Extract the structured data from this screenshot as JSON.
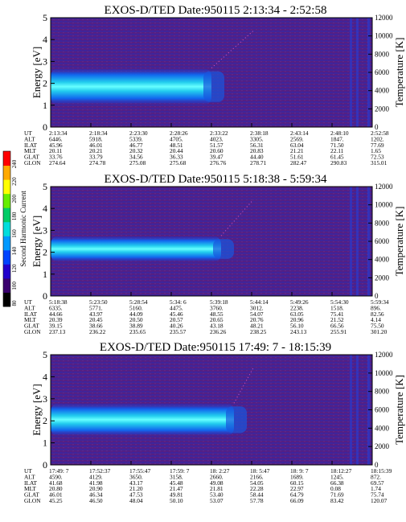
{
  "figure": {
    "colorbar": {
      "label": "Second Harmonic Current",
      "ticks": [
        "80",
        "100",
        "120",
        "140",
        "160",
        "180",
        "200",
        "220",
        "240"
      ],
      "colors": [
        "#000000",
        "#3a006e",
        "#2200cc",
        "#0044ff",
        "#0099ff",
        "#00dddd",
        "#00cc66",
        "#66ee00",
        "#ffff00",
        "#ffaa00",
        "#ff0000"
      ]
    }
  },
  "chart_data": [
    {
      "type": "heatmap",
      "title": "EXOS-D/TED   Date:950115  2:13:34 - 2:52:58",
      "ylabel": "Energy [eV]",
      "ylabel_right": "Temperature [K]",
      "yticks": [
        "0",
        "1",
        "2",
        "3",
        "4",
        "5"
      ],
      "ylim": [
        0,
        5
      ],
      "yticks_right": [
        "0",
        "2000",
        "4000",
        "6000",
        "8000",
        "10000",
        "12000"
      ],
      "ylim_right": [
        0,
        12000
      ],
      "row_labels": [
        "UT",
        "ALT",
        "ILAT",
        "MLT",
        "GLAT",
        "GLON"
      ],
      "columns": [
        [
          "2:13:34",
          "6446.",
          "45.96",
          "20.11",
          "33.76",
          "274.64"
        ],
        [
          "2:18:34",
          "5918.",
          "46.01",
          "20.21",
          "33.79",
          "274.78"
        ],
        [
          "2:23:30",
          "5339.",
          "46.77",
          "20.32",
          "34.56",
          "275.08"
        ],
        [
          "2:28:26",
          "4705.",
          "48.51",
          "20.44",
          "36.33",
          "275.68"
        ],
        [
          "2:33:22",
          "4023.",
          "51.57",
          "20.60",
          "39.47",
          "276.76"
        ],
        [
          "2:38:18",
          "3305.",
          "56.31",
          "20.83",
          "44.40",
          "278.71"
        ],
        [
          "2:43:14",
          "2569.",
          "63.04",
          "21.21",
          "51.61",
          "282.47"
        ],
        [
          "2:48:10",
          "1847.",
          "71.50",
          "22.11",
          "61.45",
          "290.83"
        ],
        [
          "2:52:58",
          "1202.",
          "77.69",
          "1.65",
          "72.53",
          "315.01"
        ]
      ],
      "band": {
        "center_ev": 1.85,
        "halfwidth_ev": 0.85,
        "end_fraction": 0.5
      }
    },
    {
      "type": "heatmap",
      "title": "EXOS-D/TED   Date:950115  5:18:38 - 5:59:34",
      "ylabel": "Energy [eV]",
      "ylabel_right": "Temperature [K]",
      "yticks": [
        "0",
        "1",
        "2",
        "3",
        "4",
        "5"
      ],
      "ylim": [
        0,
        5
      ],
      "yticks_right": [
        "0",
        "2000",
        "4000",
        "6000",
        "8000",
        "10000",
        "12000"
      ],
      "ylim_right": [
        0,
        12000
      ],
      "row_labels": [
        "UT",
        "ALT",
        "ILAT",
        "MLT",
        "GLAT",
        "GLON"
      ],
      "columns": [
        [
          "5:18:38",
          "6335.",
          "44.66",
          "20.39",
          "39.15",
          "237.13"
        ],
        [
          "5:23:50",
          "5771.",
          "43.97",
          "20.45",
          "38.66",
          "236.22"
        ],
        [
          "5:28:54",
          "5160.",
          "44.09",
          "20.50",
          "38.89",
          "235.65"
        ],
        [
          "5:34: 6",
          "4475.",
          "45.46",
          "20.57",
          "40.26",
          "235.57"
        ],
        [
          "5:39:18",
          "3760.",
          "48.55",
          "20.65",
          "43.18",
          "236.26"
        ],
        [
          "5:44:14",
          "3012.",
          "54.07",
          "20.76",
          "48.21",
          "238.25"
        ],
        [
          "5:49:26",
          "2238.",
          "63.05",
          "20.96",
          "56.10",
          "243.13"
        ],
        [
          "5:54:30",
          "1518.",
          "75.41",
          "21.52",
          "66.56",
          "255.91"
        ],
        [
          "5:59:34",
          "896.",
          "82.56",
          "4.14",
          "75.50",
          "301.20"
        ]
      ],
      "band": {
        "center_ev": 2.15,
        "halfwidth_ev": 0.6,
        "end_fraction": 0.53
      }
    },
    {
      "type": "heatmap",
      "title": "EXOS-D/TED   Date:950115  17:49: 7 - 18:15:39",
      "ylabel": "Energy [eV]",
      "ylabel_right": "Temperature [K]",
      "yticks": [
        "0",
        "1",
        "2",
        "3",
        "4",
        "5"
      ],
      "ylim": [
        0,
        5
      ],
      "yticks_right": [
        "0",
        "2000",
        "4000",
        "6000",
        "8000",
        "10000",
        "12000"
      ],
      "ylim_right": [
        0,
        12000
      ],
      "row_labels": [
        "UT",
        "ALT",
        "ILAT",
        "MLT",
        "GLAT",
        "GLON"
      ],
      "columns": [
        [
          "17:49: 7",
          "4590.",
          "41.68",
          "20.80",
          "46.01",
          "45.25"
        ],
        [
          "17:52:37",
          "4129.",
          "41.98",
          "20.90",
          "46.34",
          "46.50"
        ],
        [
          "17:55:47",
          "3650.",
          "43.17",
          "21.20",
          "47.53",
          "48.04"
        ],
        [
          "17:59: 7",
          "3158.",
          "45.48",
          "21.47",
          "49.81",
          "50.10"
        ],
        [
          "18: 2:27",
          "2660.",
          "49.08",
          "21.81",
          "53.40",
          "53.07"
        ],
        [
          "18: 5:47",
          "2166.",
          "54.05",
          "22.28",
          "58.44",
          "57.78"
        ],
        [
          "18: 9: 7",
          "1689.",
          "60.15",
          "22.97",
          "64.79",
          "66.09"
        ],
        [
          "18:12:27",
          "1245.",
          "66.38",
          "0.08",
          "71.69",
          "83.42"
        ],
        [
          "18:15:39",
          "872.",
          "69.57",
          "1.74",
          "75.74",
          "120.07"
        ]
      ],
      "band": {
        "center_ev": 2.05,
        "halfwidth_ev": 0.75,
        "end_fraction": 0.57
      }
    }
  ]
}
